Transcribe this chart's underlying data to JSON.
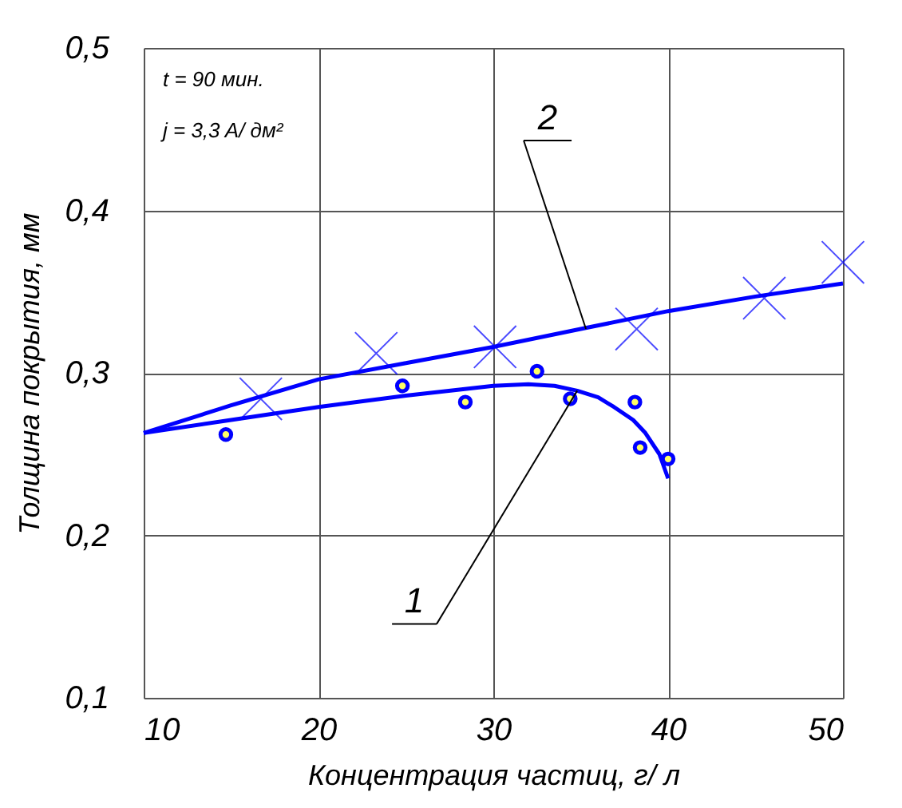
{
  "chart_data": {
    "type": "line",
    "xlabel": "Концентрация частиц, г/ л",
    "ylabel": "Толщина покрытия, мм",
    "xlim": [
      10,
      50
    ],
    "xticks": [
      10,
      20,
      30,
      40,
      50
    ],
    "ylim": [
      0.1,
      0.5
    ],
    "yticks": [
      {
        "value": 0.1,
        "label": "0,1"
      },
      {
        "value": 0.2,
        "label": "0,2"
      },
      {
        "value": 0.3,
        "label": "0,3"
      },
      {
        "value": 0.4,
        "label": "0,4"
      },
      {
        "value": 0.5,
        "label": "0,5"
      }
    ],
    "grid": true,
    "legend": false,
    "series": [
      {
        "color": "#0000ff",
        "marker": "none",
        "line_style": "solid",
        "x": [
          10,
          15,
          20,
          25,
          30,
          32,
          33.5,
          34.8,
          36,
          36.9,
          38,
          38.7,
          39.5,
          40
        ],
        "values": [
          0.263,
          0.271,
          0.279,
          0.286,
          0.292,
          0.293,
          0.292,
          0.289,
          0.285,
          0.279,
          0.271,
          0.263,
          0.25,
          0.235
        ]
      },
      {
        "color": "#0000ff",
        "marker": "none",
        "line_style": "solid",
        "x": [
          10,
          15,
          20,
          25,
          30,
          35,
          40,
          45,
          50
        ],
        "values": [
          0.263,
          0.28,
          0.296,
          0.306,
          0.316,
          0.327,
          0.338,
          0.347,
          0.355
        ]
      },
      {
        "type": "scatter",
        "color": "#0000ff",
        "marker": "circle",
        "x": [
          14.7,
          24.8,
          28.4,
          32.5,
          34.4,
          38.1,
          38.4,
          40.0
        ],
        "values": [
          0.262,
          0.292,
          0.282,
          0.301,
          0.284,
          0.282,
          0.254,
          0.247
        ]
      },
      {
        "type": "scatter",
        "color": "#0000ff",
        "marker": "cross",
        "x": [
          16.7,
          23.3,
          30.1,
          38.2,
          45.5,
          50.0
        ],
        "values": [
          0.284,
          0.312,
          0.316,
          0.327,
          0.346,
          0.368
        ]
      }
    ],
    "annotations": [
      "t = 90 мин.",
      "j = 3,3 A/ дм²",
      {
        "text": "1",
        "x": 34.8,
        "y": 0.289
      },
      {
        "text": "2",
        "x": 35.3,
        "y": 0.327
      }
    ]
  }
}
